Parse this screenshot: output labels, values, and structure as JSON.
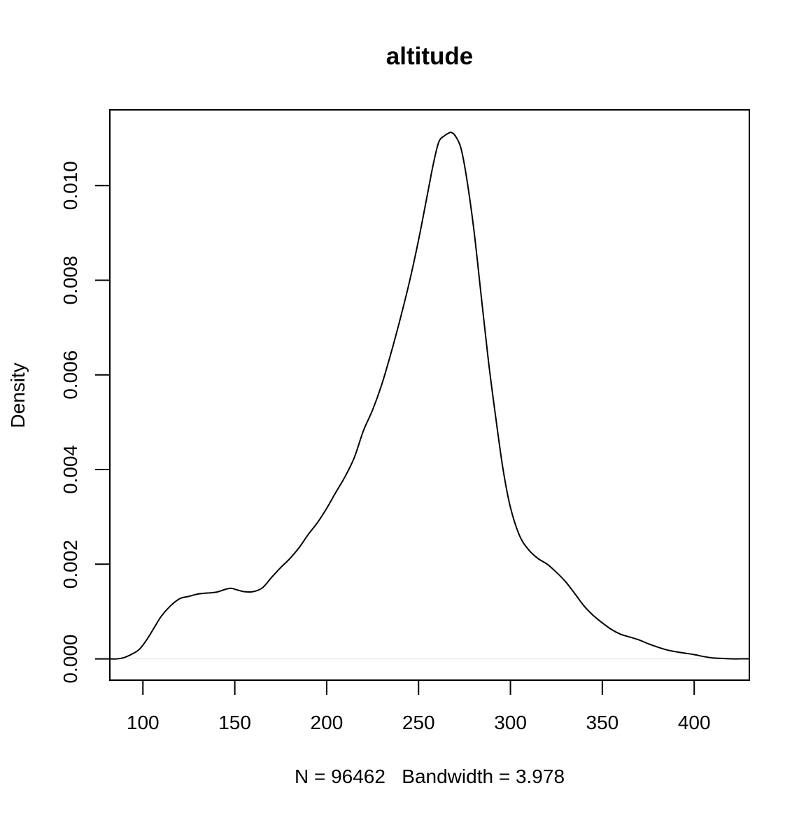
{
  "chart_data": {
    "type": "line",
    "title": "altitude",
    "xlabel": "N = 96462   Bandwidth = 3.978",
    "ylabel": "Density",
    "xlim": [
      82,
      430
    ],
    "ylim": [
      -0.00045,
      0.0116
    ],
    "x_ticks": [
      100,
      150,
      200,
      250,
      300,
      350,
      400
    ],
    "y_ticks": [
      0.0,
      0.002,
      0.004,
      0.006,
      0.008,
      0.01
    ],
    "x_tick_labels": [
      "100",
      "150",
      "200",
      "250",
      "300",
      "350",
      "400"
    ],
    "y_tick_labels": [
      "0.000",
      "0.002",
      "0.004",
      "0.006",
      "0.008",
      "0.010"
    ],
    "baseline": 0,
    "baseline_color": "#e6e6e6",
    "line_color": "#000000",
    "grid": false,
    "series": [
      {
        "x": [
          82,
          86,
          90,
          94,
          98,
          102,
          106,
          110,
          115,
          120,
          125,
          130,
          135,
          140,
          145,
          148,
          151,
          155,
          160,
          165,
          170,
          175,
          180,
          185,
          190,
          195,
          200,
          205,
          210,
          215,
          220,
          225,
          230,
          235,
          240,
          245,
          250,
          255,
          258,
          261,
          264,
          267,
          268,
          270,
          273,
          276,
          280,
          284,
          288,
          292,
          296,
          300,
          305,
          310,
          315,
          320,
          325,
          330,
          335,
          340,
          345,
          350,
          355,
          360,
          365,
          370,
          375,
          380,
          385,
          390,
          395,
          400,
          405,
          410,
          415,
          420,
          425,
          430
        ],
        "y": [
          0.0,
          0.0,
          3e-05,
          0.0001,
          0.0002,
          0.0004,
          0.00065,
          0.0009,
          0.00112,
          0.00127,
          0.00132,
          0.00137,
          0.00139,
          0.00141,
          0.00147,
          0.00149,
          0.00146,
          0.00142,
          0.00142,
          0.0015,
          0.00172,
          0.00193,
          0.00212,
          0.00235,
          0.00263,
          0.00288,
          0.00318,
          0.00352,
          0.00385,
          0.00425,
          0.00482,
          0.00526,
          0.0058,
          0.00646,
          0.00718,
          0.00796,
          0.00885,
          0.00985,
          0.01045,
          0.01092,
          0.01105,
          0.01112,
          0.01112,
          0.01105,
          0.0108,
          0.0102,
          0.0091,
          0.0077,
          0.0063,
          0.0051,
          0.004,
          0.0032,
          0.0026,
          0.0023,
          0.00212,
          0.002,
          0.00183,
          0.00163,
          0.00138,
          0.00112,
          0.00092,
          0.00076,
          0.00062,
          0.00052,
          0.00046,
          0.0004,
          0.00032,
          0.00025,
          0.00019,
          0.00015,
          0.00012,
          9e-05,
          5e-05,
          2e-05,
          1e-05,
          0.0,
          0.0,
          0.0
        ]
      }
    ]
  }
}
